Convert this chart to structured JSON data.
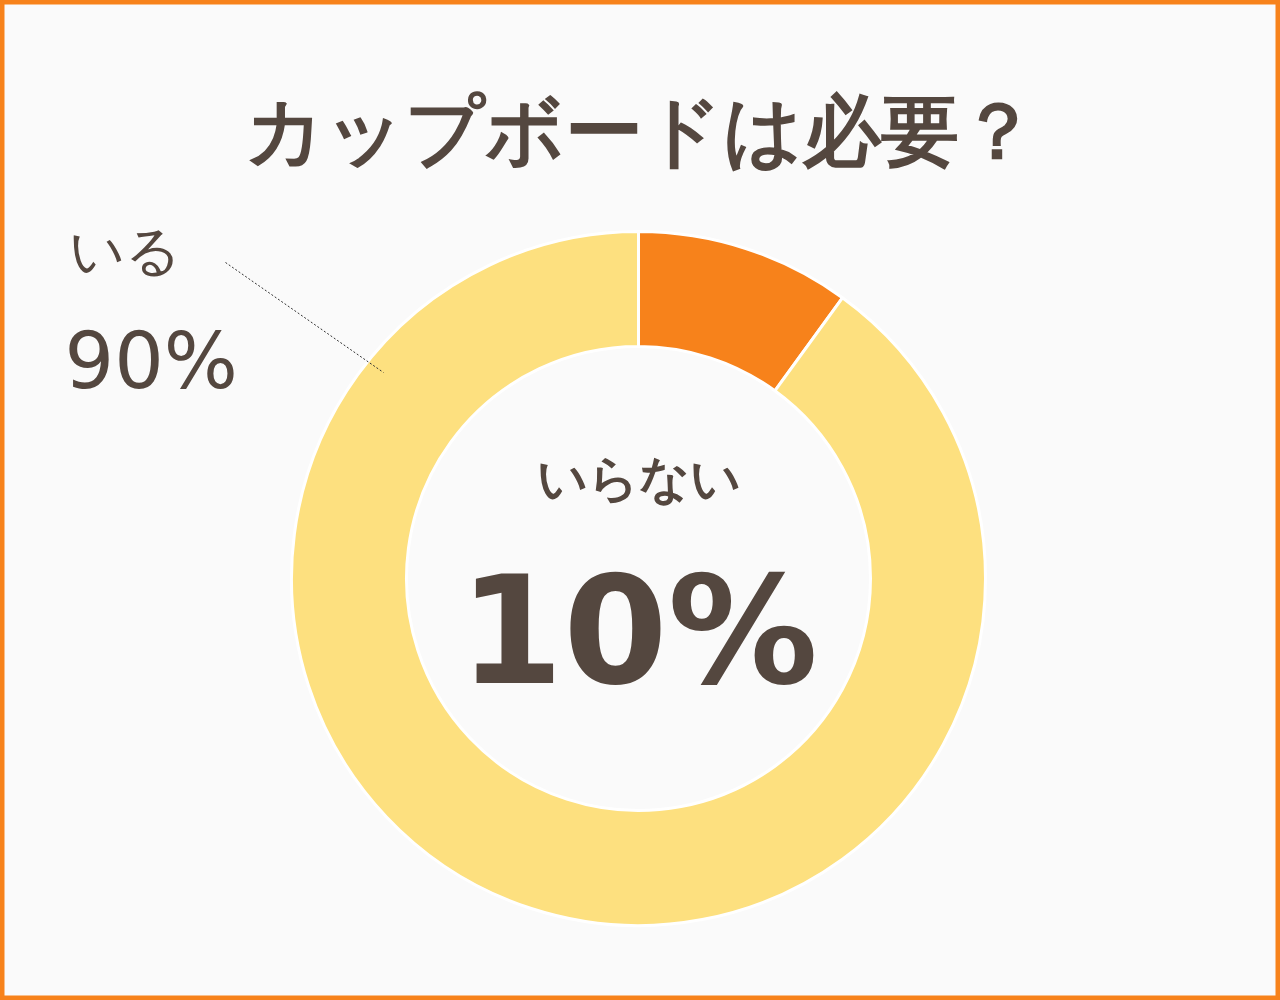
{
  "chart_data": {
    "type": "donut",
    "title": "カップボードは必要？",
    "categories": [
      "いらない",
      "いる"
    ],
    "values": [
      10,
      90
    ],
    "colors": [
      "#f7821b",
      "#fde07f"
    ],
    "value_labels": [
      "10%",
      "90%"
    ]
  }
}
